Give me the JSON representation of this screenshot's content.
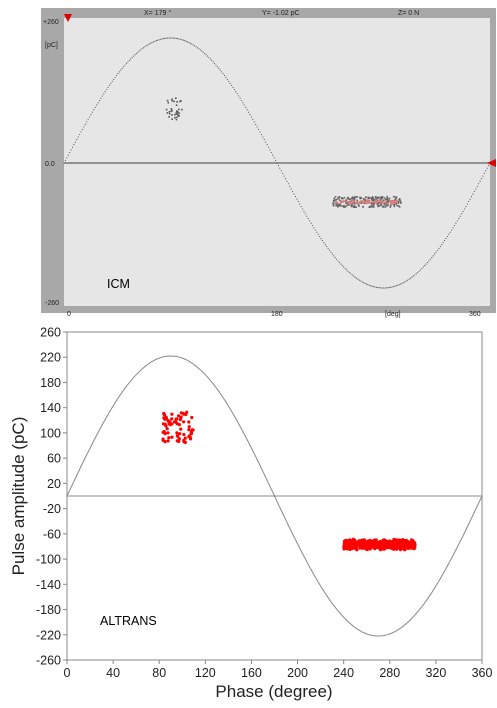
{
  "chart_data": [
    {
      "type": "scatter",
      "title": "",
      "panel_label": "ICM",
      "header": {
        "x_readout": "X= 179 °",
        "y_readout": "Y= -1.02 pC",
        "z_readout": "Z=  0 N"
      },
      "ylabel": "[pC]",
      "xlabel": "[deg]",
      "xlim": [
        0,
        360
      ],
      "ylim": [
        -260,
        260
      ],
      "y_tick_labels": [
        "+260",
        "0.0",
        "-260"
      ],
      "x_tick_labels": [
        "0",
        "180",
        "360"
      ],
      "background": "#e6e6e6",
      "frame_color": "#a8a8a8",
      "reference_sine": {
        "amplitude": 260,
        "style": "dotted"
      },
      "clusters": [
        {
          "name": "",
          "x_range": [
            85,
            100
          ],
          "y_range": [
            90,
            135
          ],
          "approx_count": 35,
          "color": "#555555"
        },
        {
          "name": "",
          "x_range": [
            227,
            285
          ],
          "y_range": [
            -92,
            -70
          ],
          "approx_count": 250,
          "color": "#666666",
          "overlay_color": "#e07c7c"
        }
      ],
      "markers": [
        "top-left red triangle",
        "right-edge red triangle at 0"
      ]
    },
    {
      "type": "scatter",
      "title": "",
      "panel_label": "ALTRANS",
      "xlabel": "Phase (degree)",
      "ylabel": "Pulse amplitude (pC)",
      "xlim": [
        0,
        360
      ],
      "ylim": [
        -260,
        260
      ],
      "x_ticks": [
        0,
        40,
        80,
        120,
        160,
        200,
        240,
        280,
        320,
        360
      ],
      "y_ticks": [
        260,
        220,
        180,
        140,
        100,
        60,
        20,
        -20,
        -60,
        -100,
        -140,
        -180,
        -220,
        -260
      ],
      "reference_sine": {
        "amplitude": 222,
        "style": "solid"
      },
      "zero_line": 0,
      "clusters": [
        {
          "name": "",
          "x_range": [
            83,
            110
          ],
          "y_range": [
            85,
            135
          ],
          "approx_count": 70,
          "color": "#ff0000"
        },
        {
          "name": "",
          "x_range": [
            240,
            302
          ],
          "y_range": [
            -86,
            -68
          ],
          "approx_count": 600,
          "color": "#ff0000"
        }
      ]
    }
  ]
}
